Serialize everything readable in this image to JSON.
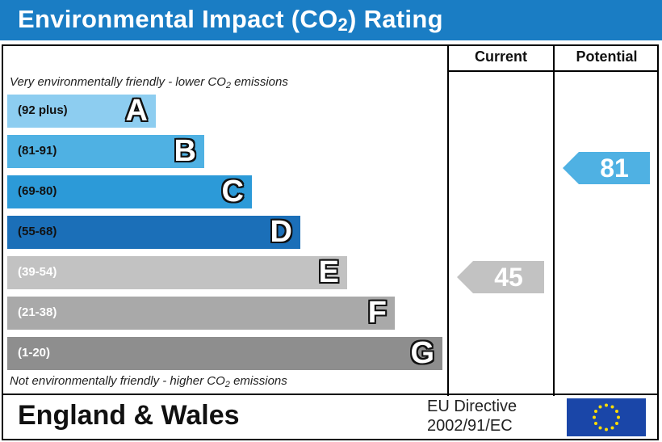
{
  "header": {
    "title_main": "Environmental Impact (CO",
    "title_sub": "2",
    "title_end": ") Rating"
  },
  "columns": {
    "current": "Current",
    "potential": "Potential"
  },
  "notes": {
    "top_pre": "Very environmentally friendly - lower CO",
    "top_sub": "2",
    "top_post": " emissions",
    "bottom_pre": "Not environmentally friendly - higher CO",
    "bottom_sub": "2",
    "bottom_post": " emissions"
  },
  "footer": {
    "region": "England & Wales",
    "directive_line1": "EU Directive",
    "directive_line2": "2002/91/EC"
  },
  "colors": {
    "title_bar": "#1a7dc4",
    "band_A": "#8dcdf0",
    "band_B": "#4fb1e3",
    "band_C": "#2c9ad8",
    "band_D": "#1b6fb8",
    "band_E": "#c2c2c2",
    "band_F": "#a9a9a9",
    "band_G": "#8e8e8e",
    "arrow_potential": "#4fb1e3",
    "arrow_current": "#c2c2c2",
    "eu_flag": "#1a46a8",
    "eu_stars": "#ffdd00"
  },
  "chart_data": {
    "type": "bar",
    "bands": [
      {
        "letter": "A",
        "range": "(92 plus)"
      },
      {
        "letter": "B",
        "range": "(81-91)"
      },
      {
        "letter": "C",
        "range": "(69-80)"
      },
      {
        "letter": "D",
        "range": "(55-68)"
      },
      {
        "letter": "E",
        "range": "(39-54)"
      },
      {
        "letter": "F",
        "range": "(21-38)"
      },
      {
        "letter": "G",
        "range": "(1-20)"
      }
    ],
    "current": {
      "value": 45,
      "band": "E"
    },
    "potential": {
      "value": 81,
      "band": "B"
    }
  }
}
